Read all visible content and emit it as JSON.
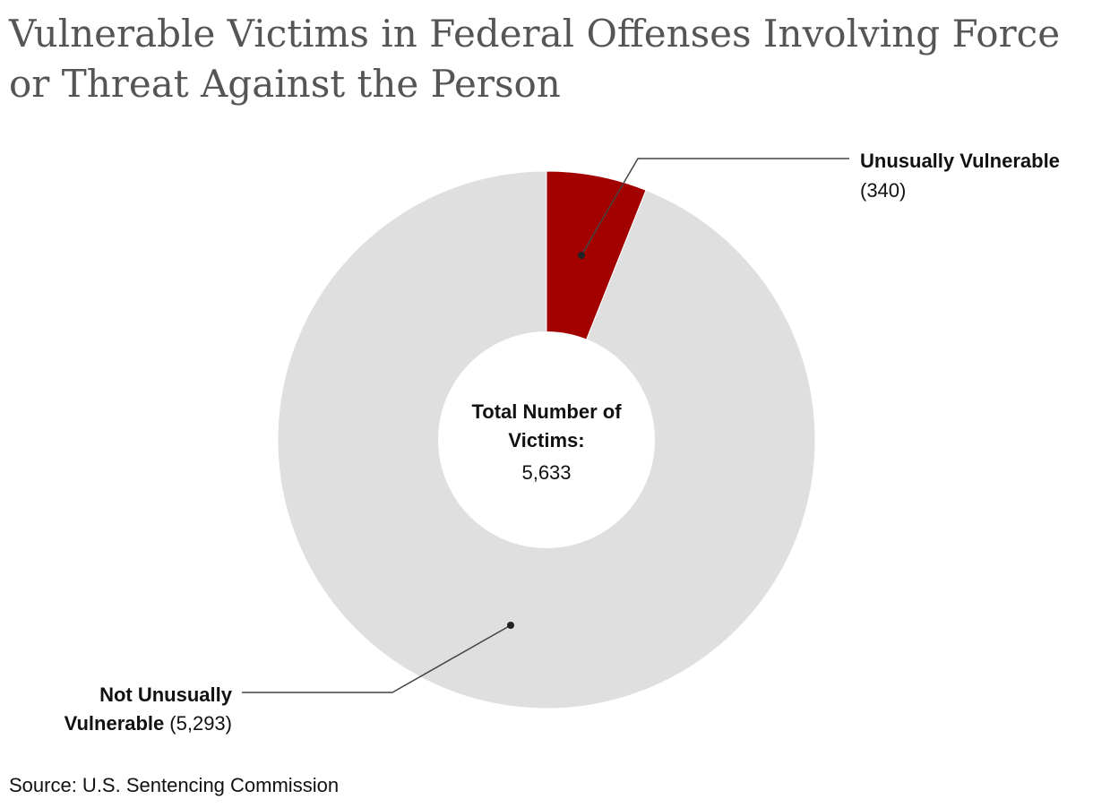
{
  "chart_data": {
    "type": "pie",
    "title": "Vulnerable Victims in Federal Offenses Involving Force or Threat Against the Person",
    "center_label": {
      "title": "Total Number of Victims:",
      "value": "5,633"
    },
    "slices": [
      {
        "label": "Unusually Vulnerable",
        "value": 340,
        "display": "(340)",
        "color": "#a30000"
      },
      {
        "label": "Not Unusually Vulnerable",
        "value": 5293,
        "display": "(5,293)",
        "color": "#dfdfdf"
      }
    ],
    "label_lines": {
      "center_title_1": "Total Number of",
      "center_title_2": "Victims:",
      "uv_name": "Unusually Vulnerable",
      "nuv_name_1": "Not Unusually",
      "nuv_name_2": "Vulnerable"
    }
  },
  "source": "Source: U.S. Sentencing Commission"
}
